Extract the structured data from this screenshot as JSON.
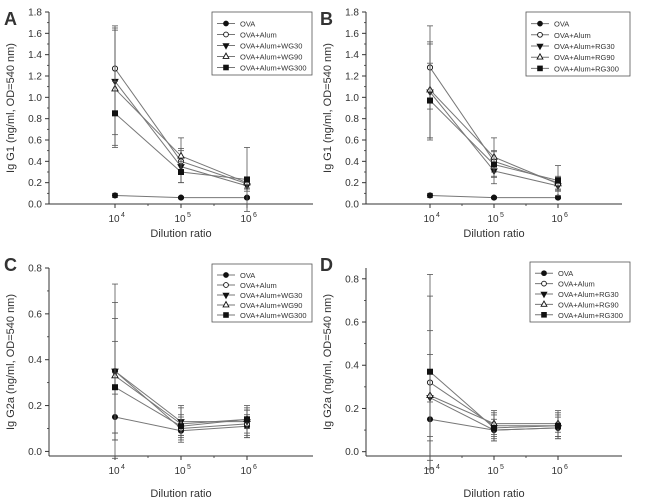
{
  "figure": {
    "xlabel": "Dilution ratio",
    "tick_sup": "4,5,6"
  },
  "chart_data": [
    {
      "panel": "A",
      "type": "line",
      "title": "",
      "xlabel": "Dilution ratio",
      "ylabel": "Ig G1 (ng/ml, OD=540 nm)",
      "categories": [
        "10^4",
        "10^5",
        "10^6"
      ],
      "tick_base": "10",
      "tick_exp": [
        "4",
        "5",
        "6"
      ],
      "ylim": [
        0,
        1.8
      ],
      "yticks": [
        "0.0",
        "0.2",
        "0.4",
        "0.6",
        "0.8",
        "1.0",
        "1.2",
        "1.4",
        "1.6",
        "1.8"
      ],
      "legend_position": "top-right",
      "series": [
        {
          "name": "OVA",
          "marker": "filled-circle",
          "values": [
            0.08,
            0.06,
            0.06
          ],
          "err": [
            0.02,
            0.01,
            0.01
          ]
        },
        {
          "name": "OVA+Alum",
          "marker": "open-circle",
          "values": [
            1.27,
            0.4,
            0.19
          ],
          "err": [
            0.4,
            0.12,
            0.05
          ]
        },
        {
          "name": "OVA+Alum+WG30",
          "marker": "filled-triangle-down",
          "values": [
            1.15,
            0.35,
            0.17
          ],
          "err": [
            0.5,
            0.15,
            0.05
          ]
        },
        {
          "name": "OVA+Alum+WG90",
          "marker": "open-triangle-up",
          "values": [
            1.08,
            0.45,
            0.2
          ],
          "err": [
            0.55,
            0.17,
            0.05
          ]
        },
        {
          "name": "OVA+Alum+WG300",
          "marker": "filled-square",
          "values": [
            0.85,
            0.3,
            0.23
          ],
          "err": [
            0.3,
            0.1,
            0.3
          ]
        }
      ]
    },
    {
      "panel": "B",
      "type": "line",
      "title": "",
      "xlabel": "Dilution ratio",
      "ylabel": "Ig G1 (ng/ml, OD=540 nm)",
      "categories": [
        "10^4",
        "10^5",
        "10^6"
      ],
      "tick_base": "10",
      "tick_exp": [
        "4",
        "5",
        "6"
      ],
      "ylim": [
        0,
        1.8
      ],
      "yticks": [
        "0.0",
        "0.2",
        "0.4",
        "0.6",
        "0.8",
        "1.0",
        "1.2",
        "1.4",
        "1.6",
        "1.8"
      ],
      "legend_position": "top-right",
      "series": [
        {
          "name": "OVA",
          "marker": "filled-circle",
          "values": [
            0.08,
            0.06,
            0.06
          ],
          "err": [
            0.02,
            0.01,
            0.01
          ]
        },
        {
          "name": "OVA+Alum",
          "marker": "open-circle",
          "values": [
            1.28,
            0.4,
            0.2
          ],
          "err": [
            0.39,
            0.1,
            0.06
          ]
        },
        {
          "name": "OVA+Alum+RG30",
          "marker": "filled-triangle-down",
          "values": [
            1.05,
            0.31,
            0.17
          ],
          "err": [
            0.45,
            0.12,
            0.05
          ]
        },
        {
          "name": "OVA+Alum+RG90",
          "marker": "open-triangle-up",
          "values": [
            1.07,
            0.44,
            0.19
          ],
          "err": [
            0.45,
            0.18,
            0.06
          ]
        },
        {
          "name": "OVA+Alum+RG300",
          "marker": "filled-square",
          "values": [
            0.97,
            0.37,
            0.22
          ],
          "err": [
            0.35,
            0.12,
            0.14
          ]
        }
      ]
    },
    {
      "panel": "C",
      "type": "line",
      "title": "",
      "xlabel": "Dilution ratio",
      "ylabel": "Ig G2a (ng/ml, OD=540 nm)",
      "categories": [
        "10^4",
        "10^5",
        "10^6"
      ],
      "tick_base": "10",
      "tick_exp": [
        "4",
        "5",
        "6"
      ],
      "ylim": [
        -0.02,
        0.8
      ],
      "yticks": [
        "0.0",
        "0.2",
        "0.4",
        "0.6",
        "0.8"
      ],
      "legend_position": "top-right",
      "series": [
        {
          "name": "OVA",
          "marker": "filled-circle",
          "values": [
            0.15,
            0.09,
            0.11
          ],
          "err": [
            0.1,
            0.02,
            0.05
          ]
        },
        {
          "name": "OVA+Alum",
          "marker": "open-circle",
          "values": [
            0.35,
            0.1,
            0.12
          ],
          "err": [
            0.38,
            0.05,
            0.06
          ]
        },
        {
          "name": "OVA+Alum+WG30",
          "marker": "filled-triangle-down",
          "values": [
            0.35,
            0.13,
            0.13
          ],
          "err": [
            0.3,
            0.06,
            0.06
          ]
        },
        {
          "name": "OVA+Alum+WG90",
          "marker": "open-triangle-up",
          "values": [
            0.33,
            0.12,
            0.14
          ],
          "err": [
            0.25,
            0.08,
            0.06
          ]
        },
        {
          "name": "OVA+Alum+WG300",
          "marker": "filled-square",
          "values": [
            0.28,
            0.11,
            0.14
          ],
          "err": [
            0.2,
            0.05,
            0.04
          ]
        }
      ]
    },
    {
      "panel": "D",
      "type": "line",
      "title": "",
      "xlabel": "Dilution ratio",
      "ylabel": "Ig G2a (ng/ml, OD=540 nm)",
      "categories": [
        "10^4",
        "10^5",
        "10^6"
      ],
      "tick_base": "10",
      "tick_exp": [
        "4",
        "5",
        "6"
      ],
      "ylim": [
        -0.02,
        0.85
      ],
      "yticks": [
        "0.0",
        "0.2",
        "0.4",
        "0.6",
        "0.8"
      ],
      "legend_position": "top-right",
      "series": [
        {
          "name": "OVA",
          "marker": "filled-circle",
          "values": [
            0.15,
            0.1,
            0.11
          ],
          "err": [
            0.08,
            0.02,
            0.02
          ]
        },
        {
          "name": "OVA+Alum",
          "marker": "open-circle",
          "values": [
            0.32,
            0.12,
            0.12
          ],
          "err": [
            0.4,
            0.06,
            0.06
          ]
        },
        {
          "name": "OVA+Alum+RG30",
          "marker": "filled-triangle-down",
          "values": [
            0.25,
            0.1,
            0.11
          ],
          "err": [
            0.2,
            0.05,
            0.05
          ]
        },
        {
          "name": "OVA+Alum+RG90",
          "marker": "open-triangle-up",
          "values": [
            0.26,
            0.13,
            0.13
          ],
          "err": [
            0.3,
            0.06,
            0.06
          ]
        },
        {
          "name": "OVA+Alum+RG300",
          "marker": "filled-square",
          "values": [
            0.37,
            0.11,
            0.12
          ],
          "err": [
            0.45,
            0.06,
            0.05
          ]
        }
      ]
    }
  ]
}
